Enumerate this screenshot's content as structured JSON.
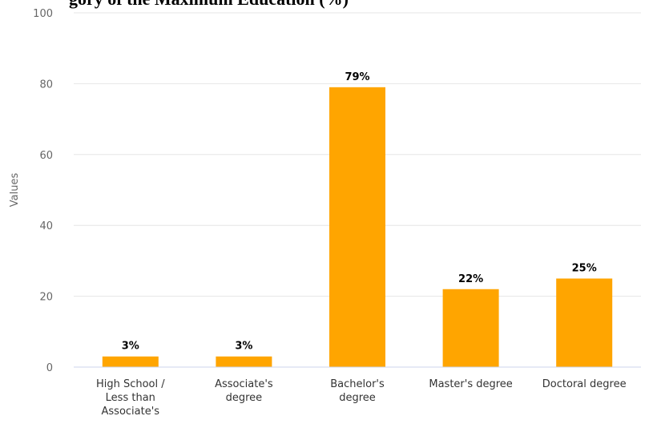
{
  "chart_data": {
    "type": "bar",
    "title": "gory of the Maximum Education (%)",
    "xlabel": "",
    "ylabel": "Values",
    "ylim": [
      0,
      100
    ],
    "yticks": [
      0,
      20,
      40,
      60,
      80,
      100
    ],
    "grid": true,
    "categories": [
      [
        "High School /",
        "Less than",
        "Associate's"
      ],
      [
        "Associate's",
        "degree"
      ],
      [
        "Bachelor's",
        "degree"
      ],
      [
        "Master's degree"
      ],
      [
        "Doctoral degree"
      ]
    ],
    "values": [
      3,
      3,
      79,
      22,
      25
    ],
    "data_labels": [
      "3%",
      "3%",
      "79%",
      "22%",
      "25%"
    ],
    "bar_color": "#ffa500",
    "grid_color": "#e6e6e6"
  }
}
